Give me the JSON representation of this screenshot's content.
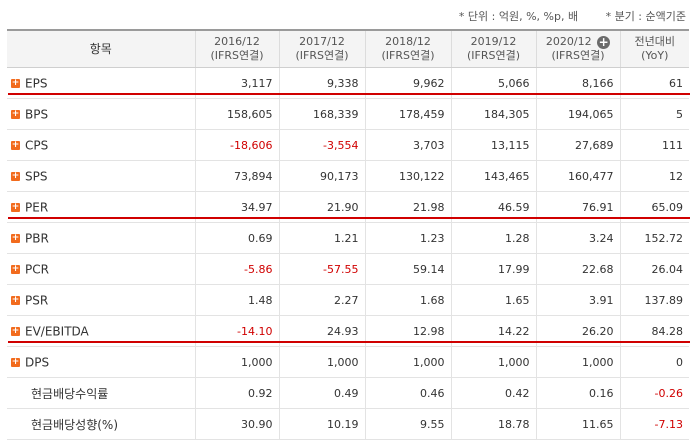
{
  "notes": {
    "unit": "* 단위 : 억원, %, %p, 배",
    "period": "* 분기 : 순액기준"
  },
  "headers": [
    {
      "line1": "항목",
      "line2": ""
    },
    {
      "line1": "2016/12",
      "line2": "(IFRS연결)"
    },
    {
      "line1": "2017/12",
      "line2": "(IFRS연결)"
    },
    {
      "line1": "2018/12",
      "line2": "(IFRS연결)"
    },
    {
      "line1": "2019/12",
      "line2": "(IFRS연결)"
    },
    {
      "line1": "2020/12",
      "line2": "(IFRS연결)"
    },
    {
      "line1": "전년대비",
      "line2": "(YoY)"
    }
  ],
  "rows": [
    {
      "label": "EPS",
      "expandable": true,
      "values": [
        "3,117",
        "9,338",
        "9,962",
        "5,066",
        "8,166",
        "61"
      ]
    },
    {
      "label": "BPS",
      "expandable": true,
      "values": [
        "158,605",
        "168,339",
        "178,459",
        "184,305",
        "194,065",
        "5"
      ]
    },
    {
      "label": "CPS",
      "expandable": true,
      "values": [
        "-18,606",
        "-3,554",
        "3,703",
        "13,115",
        "27,689",
        "111"
      ]
    },
    {
      "label": "SPS",
      "expandable": true,
      "values": [
        "73,894",
        "90,173",
        "130,122",
        "143,465",
        "160,477",
        "12"
      ]
    },
    {
      "label": "PER",
      "expandable": true,
      "values": [
        "34.97",
        "21.90",
        "21.98",
        "46.59",
        "76.91",
        "65.09"
      ]
    },
    {
      "label": "PBR",
      "expandable": true,
      "values": [
        "0.69",
        "1.21",
        "1.23",
        "1.28",
        "3.24",
        "152.72"
      ]
    },
    {
      "label": "PCR",
      "expandable": true,
      "values": [
        "-5.86",
        "-57.55",
        "59.14",
        "17.99",
        "22.68",
        "26.04"
      ]
    },
    {
      "label": "PSR",
      "expandable": true,
      "values": [
        "1.48",
        "2.27",
        "1.68",
        "1.65",
        "3.91",
        "137.89"
      ]
    },
    {
      "label": "EV/EBITDA",
      "expandable": true,
      "values": [
        "-14.10",
        "24.93",
        "12.98",
        "14.22",
        "26.20",
        "84.28"
      ]
    },
    {
      "label": "DPS",
      "expandable": true,
      "values": [
        "1,000",
        "1,000",
        "1,000",
        "1,000",
        "1,000",
        "0"
      ]
    },
    {
      "label": "현금배당수익률",
      "expandable": false,
      "values": [
        "0.92",
        "0.49",
        "0.46",
        "0.42",
        "0.16",
        "-0.26"
      ]
    },
    {
      "label": "현금배당성향(%)",
      "expandable": false,
      "values": [
        "30.90",
        "10.19",
        "9.55",
        "18.78",
        "11.65",
        "-7.13"
      ]
    }
  ],
  "colors": {
    "negative": "#d00000",
    "expand_icon": "#f26b1d",
    "highlight_line": "#d00000"
  },
  "icons": {
    "expand": "plus-square-icon",
    "header_add": "circle-plus-icon"
  }
}
